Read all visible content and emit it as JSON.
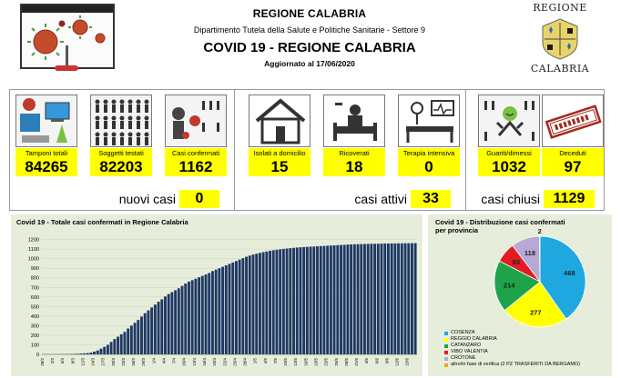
{
  "header": {
    "region": "REGIONE CALABRIA",
    "department": "Dipartimento Tutela della Salute e Politiche Sanitarie - Settore 9",
    "title": "COVID 19 - REGIONE CALABRIA",
    "updated": "Aggiornato al  17/06/2020",
    "crest_top": "REGIONE",
    "crest_bottom": "CALABRIA"
  },
  "cards": [
    {
      "label": "Tamponi totali",
      "value": "84265",
      "icon": "lab-test-icon"
    },
    {
      "label": "Soggetti testati",
      "value": "82203",
      "icon": "people-tested-icon"
    },
    {
      "label": "Casi confermati",
      "value": "1162",
      "icon": "confirmed-cases-icon"
    },
    {
      "label": "Isolati a domicilio",
      "value": "15",
      "icon": "house-icon"
    },
    {
      "label": "Ricoverati",
      "value": "18",
      "icon": "hospital-bed-icon"
    },
    {
      "label": "Terapia intensiva",
      "value": "0",
      "icon": "intensive-care-icon"
    },
    {
      "label": "Guariti/dimessi",
      "value": "1032",
      "icon": "recovered-icon"
    },
    {
      "label": "Deceduti",
      "value": "97",
      "icon": "deceased-stamp-icon"
    }
  ],
  "summary": {
    "new_label": "nuovi casi",
    "new_value": "0",
    "active_label": "casi attivi",
    "active_value": "33",
    "closed_label": "casi chiusi",
    "closed_value": "1129"
  },
  "bar_chart_title": "Covid 19 -  Totale casi confermati in Regione Calabria",
  "pie_chart_title": "Covid 19 - Distribuzione casi confermati per provincia",
  "colors": {
    "bar": "#1f3864",
    "highlight": "#ffff00"
  },
  "chart_data": [
    {
      "type": "bar",
      "title": "Covid 19 -  Totale casi confermati in Regione Calabria",
      "ylim": [
        0,
        1200
      ],
      "yticks": [
        0,
        100,
        200,
        300,
        400,
        500,
        600,
        700,
        800,
        900,
        1000,
        1100,
        1200
      ],
      "categories": [
        "28/2",
        "29/2",
        "1/3",
        "2/3",
        "3/3",
        "4/3",
        "5/3",
        "6/3",
        "7/3",
        "8/3",
        "9/3",
        "10/3",
        "11/3",
        "12/3",
        "13/3",
        "14/3",
        "15/3",
        "16/3",
        "17/3",
        "18/3",
        "19/3",
        "20/3",
        "21/3",
        "22/3",
        "23/3",
        "24/3",
        "25/3",
        "26/3",
        "27/3",
        "28/3",
        "29/3",
        "30/3",
        "31/3",
        "1/4",
        "2/4",
        "3/4",
        "4/4",
        "5/4",
        "6/4",
        "7/4",
        "8/4",
        "9/4",
        "10/4",
        "11/4",
        "12/4",
        "13/4",
        "14/4",
        "15/4",
        "16/4",
        "17/4",
        "18/4",
        "19/4",
        "20/4",
        "21/4",
        "22/4",
        "23/4",
        "24/4",
        "25/4",
        "26/4",
        "27/4",
        "28/4",
        "29/4",
        "30/4",
        "1/5",
        "2/5",
        "3/5",
        "4/5",
        "5/5",
        "6/5",
        "7/5",
        "8/5",
        "9/5",
        "10/5",
        "11/5",
        "12/5",
        "13/5",
        "14/5",
        "15/5",
        "16/5",
        "17/5",
        "18/5",
        "19/5",
        "20/5",
        "21/5",
        "22/5",
        "23/5",
        "24/5",
        "25/5",
        "26/5",
        "27/5",
        "28/5",
        "29/5",
        "30/5",
        "31/5",
        "1/6",
        "2/6",
        "3/6",
        "4/6",
        "5/6",
        "6/6",
        "7/6",
        "8/6",
        "9/6",
        "10/6",
        "11/6",
        "12/6",
        "13/6",
        "14/6",
        "15/6",
        "16/6",
        "17/6"
      ],
      "values": [
        1,
        1,
        1,
        1,
        1,
        2,
        2,
        3,
        4,
        5,
        7,
        9,
        11,
        14,
        19,
        29,
        41,
        60,
        79,
        100,
        130,
        160,
        185,
        210,
        235,
        270,
        300,
        330,
        360,
        395,
        430,
        460,
        490,
        520,
        550,
        575,
        605,
        630,
        650,
        670,
        690,
        715,
        740,
        760,
        775,
        790,
        805,
        820,
        835,
        850,
        870,
        885,
        900,
        915,
        930,
        945,
        960,
        975,
        990,
        1005,
        1020,
        1032,
        1043,
        1052,
        1060,
        1068,
        1075,
        1082,
        1088,
        1093,
        1098,
        1102,
        1106,
        1110,
        1113,
        1116,
        1119,
        1121,
        1123,
        1125,
        1127,
        1129,
        1131,
        1133,
        1135,
        1137,
        1139,
        1141,
        1143,
        1145,
        1147,
        1149,
        1150,
        1151,
        1152,
        1153,
        1154,
        1155,
        1155,
        1156,
        1157,
        1158,
        1158,
        1159,
        1159,
        1160,
        1160,
        1161,
        1161,
        1162,
        1162
      ]
    },
    {
      "type": "pie",
      "title": "Covid 19 - Distribuzione casi confermati per provincia",
      "series": [
        {
          "name": "COSENZA",
          "value": 468,
          "color": "#1ea8df"
        },
        {
          "name": "REGGIO CALABRIA",
          "value": 277,
          "color": "#ffff00"
        },
        {
          "name": "CATANZARO",
          "value": 214,
          "color": "#1fa34a"
        },
        {
          "name": "VIBO VALENTIA",
          "value": 83,
          "color": "#e31b23"
        },
        {
          "name": "CROTONE",
          "value": 118,
          "color": "#b7a8d4"
        },
        {
          "name": "altro/in fase di verifica (2 PZ TRASFERITI DA BERGAMO)",
          "value": 2,
          "color": "#f4a11d"
        }
      ]
    }
  ]
}
